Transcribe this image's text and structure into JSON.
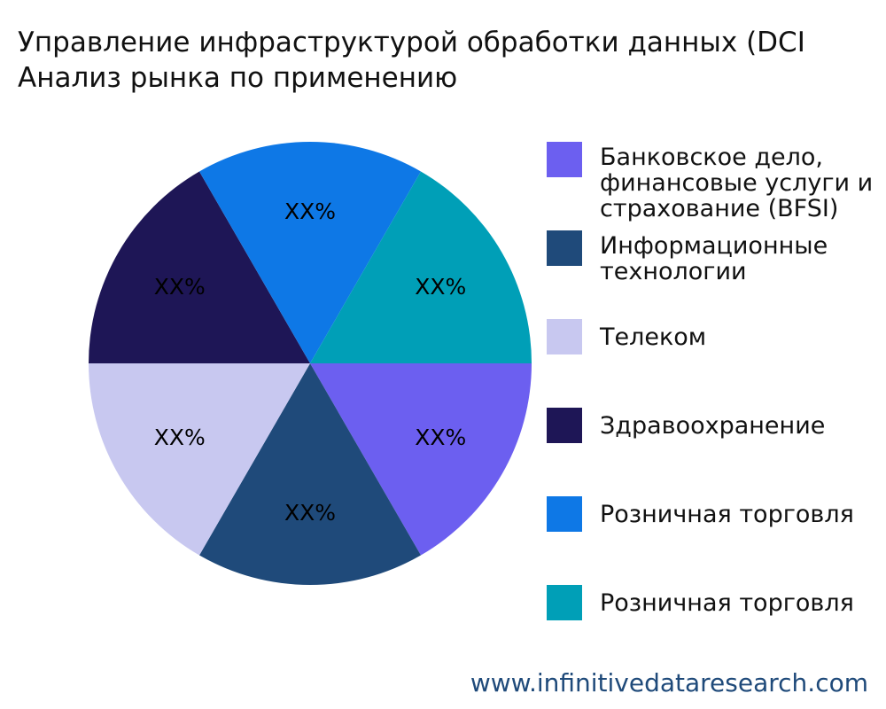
{
  "chart_data": {
    "type": "pie",
    "title": [
      "Управление инфраструктурой обработки данных (DCI",
      "Анализ рынка по применению"
    ],
    "categories": [
      "Банковское дело, финансовые услуги и страхование (BFSI)",
      "Информационные технологии",
      "Телеком",
      "Здравоохранение",
      "Розничная торговля",
      "Розничная торговля"
    ],
    "values": [
      16.7,
      16.7,
      16.7,
      16.7,
      16.7,
      16.7
    ],
    "value_labels": [
      "XX%",
      "XX%",
      "XX%",
      "XX%",
      "XX%",
      "XX%"
    ],
    "colors": [
      "#6c5ff0",
      "#1f4a7a",
      "#c8c8f0",
      "#1e1656",
      "#0e78e6",
      "#009fb7"
    ],
    "legend": "right",
    "source": "www.infinitivedataresearch.com"
  }
}
